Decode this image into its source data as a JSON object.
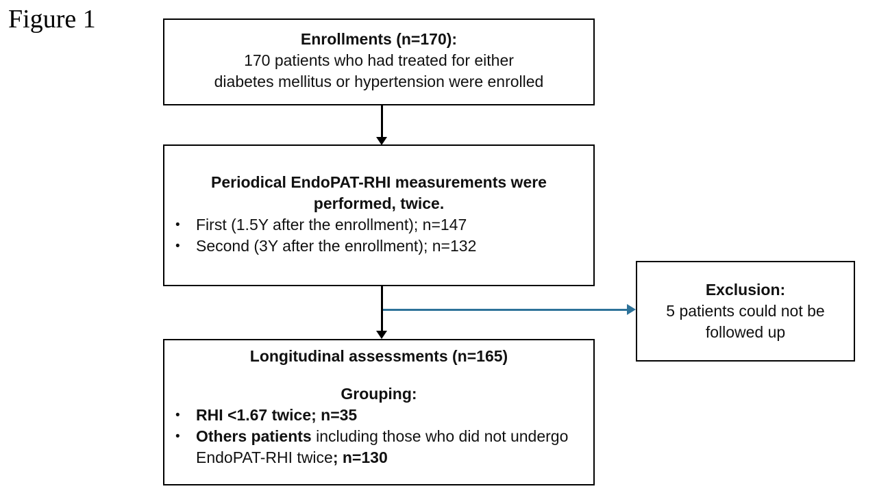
{
  "figure_label": "Figure 1",
  "colors": {
    "arrow_blue": "#2D7299",
    "border": "#000000",
    "text": "#111111"
  },
  "boxes": {
    "enrollment": {
      "lines": [
        {
          "type": "center",
          "segments": [
            {
              "text": "Enrollments (n=170):",
              "bold": true
            }
          ]
        },
        {
          "type": "center",
          "segments": [
            {
              "text": "170 patients who had treated for either",
              "bold": false
            }
          ]
        },
        {
          "type": "center",
          "segments": [
            {
              "text": "diabetes mellitus or hypertension were enrolled",
              "bold": false
            }
          ]
        }
      ]
    },
    "measurements": {
      "lines": [
        {
          "type": "center",
          "segments": [
            {
              "text": "Periodical EndoPAT-RHI measurements were",
              "bold": true
            }
          ]
        },
        {
          "type": "center",
          "segments": [
            {
              "text": "performed, twice.",
              "bold": true
            }
          ]
        },
        {
          "type": "bullet",
          "segments": [
            {
              "text": "First (1.5Y after the enrollment); n=147",
              "bold": false
            }
          ]
        },
        {
          "type": "bullet",
          "segments": [
            {
              "text": "Second (3Y after the enrollment); n=132",
              "bold": false
            }
          ]
        }
      ]
    },
    "longitudinal": {
      "lines": [
        {
          "type": "center",
          "segments": [
            {
              "text": "Longitudinal assessments (n=165)",
              "bold": true
            }
          ]
        },
        {
          "type": "spacer",
          "segments": []
        },
        {
          "type": "center",
          "segments": [
            {
              "text": "Grouping:",
              "bold": true
            }
          ]
        },
        {
          "type": "bullet",
          "segments": [
            {
              "text": "RHI <1.67 twice; n=35",
              "bold": true
            }
          ]
        },
        {
          "type": "bullet",
          "segments": [
            {
              "text": "Others patients",
              "bold": true
            },
            {
              "text": " including those who did not undergo EndoPAT-RHI twice",
              "bold": false
            },
            {
              "text": "; n=130",
              "bold": true
            }
          ]
        }
      ]
    },
    "exclusion": {
      "lines": [
        {
          "type": "center",
          "segments": [
            {
              "text": "Exclusion:",
              "bold": true
            }
          ]
        },
        {
          "type": "center",
          "segments": [
            {
              "text": "5 patients could not be",
              "bold": false
            }
          ]
        },
        {
          "type": "center",
          "segments": [
            {
              "text": "followed up",
              "bold": false
            }
          ]
        }
      ]
    }
  }
}
